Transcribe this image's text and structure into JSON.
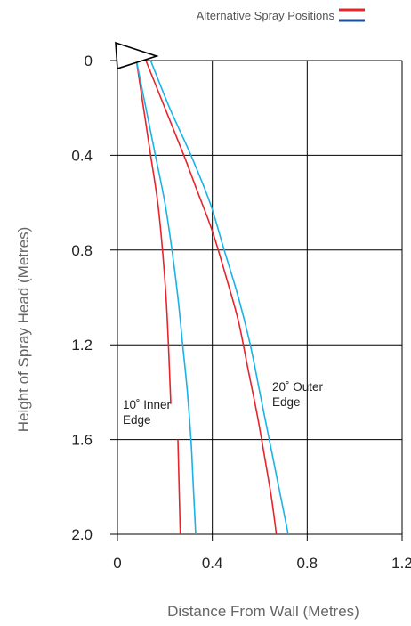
{
  "chart_data": {
    "type": "line",
    "title": "",
    "legend": {
      "label": "Alternative Spray Positions",
      "placement": "top-right",
      "colors": [
        "#e8242b",
        "#1f4e9e"
      ]
    },
    "xlabel": "Distance From Wall (Metres)",
    "ylabel": "Height of Spray Head (Metres)",
    "xlim": [
      0,
      1.2
    ],
    "ylim": [
      0,
      2.0
    ],
    "y_inverted": true,
    "x_ticks": [
      "0",
      "0.4",
      "0.8",
      "1.2"
    ],
    "y_ticks": [
      "0",
      "0.4",
      "0.8",
      "1.2",
      "1.6",
      "2.0"
    ],
    "grid": true,
    "annotations": [
      {
        "lines": [
          "10˚ Inner",
          "Edge"
        ]
      },
      {
        "lines": [
          "20˚ Outer",
          "Edge"
        ]
      }
    ],
    "series": [
      {
        "color": "#e8242b",
        "points": [
          [
            0.08,
            0.0
          ],
          [
            0.11,
            0.2
          ],
          [
            0.14,
            0.4
          ],
          [
            0.17,
            0.6
          ],
          [
            0.19,
            0.8
          ],
          [
            0.205,
            1.0
          ],
          [
            0.215,
            1.2
          ],
          [
            0.225,
            1.45
          ]
        ]
      },
      {
        "color": "#e8242b",
        "points": [
          [
            0.255,
            1.6
          ],
          [
            0.265,
            2.0
          ]
        ]
      },
      {
        "color": "#1bb2e6",
        "points": [
          [
            0.08,
            0.0
          ],
          [
            0.12,
            0.2
          ],
          [
            0.16,
            0.4
          ],
          [
            0.2,
            0.6
          ],
          [
            0.23,
            0.8
          ],
          [
            0.255,
            1.0
          ],
          [
            0.275,
            1.2
          ],
          [
            0.295,
            1.4
          ],
          [
            0.31,
            1.6
          ],
          [
            0.32,
            1.8
          ],
          [
            0.33,
            2.0
          ]
        ]
      },
      {
        "color": "#e8242b",
        "points": [
          [
            0.12,
            0.0
          ],
          [
            0.2,
            0.2
          ],
          [
            0.28,
            0.4
          ],
          [
            0.34,
            0.56
          ],
          [
            0.4,
            0.72
          ],
          [
            0.46,
            0.92
          ],
          [
            0.51,
            1.1
          ],
          [
            0.55,
            1.3
          ],
          [
            0.59,
            1.5
          ],
          [
            0.625,
            1.7
          ],
          [
            0.65,
            1.85
          ],
          [
            0.67,
            2.0
          ]
        ]
      },
      {
        "color": "#1bb2e6",
        "points": [
          [
            0.14,
            0.0
          ],
          [
            0.22,
            0.2
          ],
          [
            0.31,
            0.4
          ],
          [
            0.39,
            0.6
          ],
          [
            0.45,
            0.8
          ],
          [
            0.51,
            1.0
          ],
          [
            0.56,
            1.2
          ],
          [
            0.6,
            1.4
          ],
          [
            0.64,
            1.6
          ],
          [
            0.68,
            1.8
          ],
          [
            0.72,
            2.0
          ]
        ]
      }
    ]
  }
}
